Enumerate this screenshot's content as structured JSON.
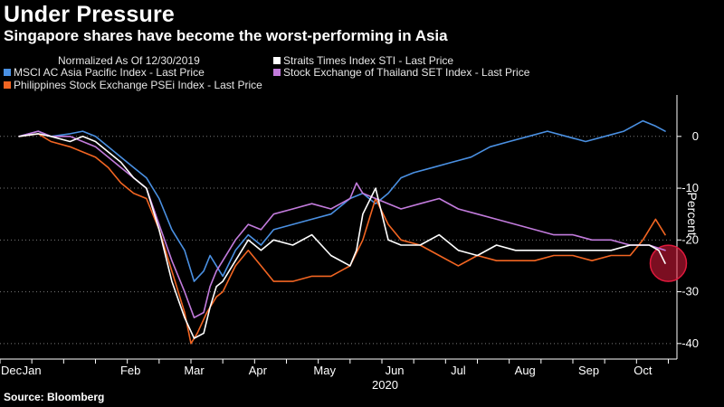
{
  "title": "Under Pressure",
  "subtitle": "Singapore shares have become the worst-performing in Asia",
  "source": "Source: Bloomberg",
  "chart_data": {
    "type": "line",
    "normalized_note": "Normalized As Of 12/30/2019",
    "ylabel": "Percent",
    "year_label": "2020",
    "ylim": [
      -43,
      8
    ],
    "yticks": [
      0,
      -10,
      -20,
      -30,
      -40
    ],
    "xlim": [
      -0.3,
      10.25
    ],
    "xticks": [
      {
        "label": "Dec",
        "x": -0.3
      },
      {
        "label": "Jan",
        "x": 0.2
      },
      {
        "label": "Feb",
        "x": 1.75
      },
      {
        "label": "Mar",
        "x": 2.75
      },
      {
        "label": "Apr",
        "x": 3.75
      },
      {
        "label": "May",
        "x": 4.8
      },
      {
        "label": "Jun",
        "x": 5.9
      },
      {
        "label": "Jul",
        "x": 6.9
      },
      {
        "label": "Aug",
        "x": 7.95
      },
      {
        "label": "Sep",
        "x": 8.95
      },
      {
        "label": "Oct",
        "x": 9.8
      }
    ],
    "highlight": {
      "x": 10.2,
      "y": -24.5,
      "color": "#e0193c"
    },
    "series": [
      {
        "name": "MSCI AC Asia Pacific Index - Last Price",
        "color": "#4a90e2",
        "x": [
          0,
          0.3,
          0.5,
          0.8,
          1.0,
          1.2,
          1.4,
          1.6,
          1.8,
          2.0,
          2.2,
          2.4,
          2.6,
          2.75,
          2.9,
          3.0,
          3.1,
          3.2,
          3.4,
          3.6,
          3.8,
          4.0,
          4.3,
          4.6,
          4.9,
          5.2,
          5.4,
          5.6,
          5.8,
          6.0,
          6.2,
          6.5,
          6.8,
          7.1,
          7.4,
          7.7,
          8.0,
          8.3,
          8.6,
          8.9,
          9.2,
          9.5,
          9.8,
          10.0,
          10.15
        ],
        "y": [
          0,
          1,
          0,
          0.5,
          1,
          0,
          -2,
          -4,
          -6,
          -8,
          -12,
          -18,
          -22,
          -28,
          -26,
          -23,
          -25,
          -27,
          -22,
          -19,
          -21,
          -18,
          -17,
          -16,
          -15,
          -12,
          -11,
          -13,
          -11,
          -8,
          -7,
          -6,
          -5,
          -4,
          -2,
          -1,
          0,
          1,
          0,
          -1,
          0,
          1,
          3,
          2,
          1
        ]
      },
      {
        "name": "Straits Times Index STI - Last Price",
        "color": "#ffffff",
        "x": [
          0,
          0.3,
          0.5,
          0.8,
          1.0,
          1.2,
          1.4,
          1.6,
          1.8,
          2.0,
          2.2,
          2.4,
          2.6,
          2.75,
          2.9,
          3.0,
          3.1,
          3.2,
          3.4,
          3.6,
          3.8,
          4.0,
          4.3,
          4.6,
          4.9,
          5.2,
          5.3,
          5.4,
          5.6,
          5.8,
          6.0,
          6.3,
          6.6,
          6.9,
          7.2,
          7.5,
          7.8,
          8.1,
          8.4,
          8.7,
          9.0,
          9.3,
          9.6,
          9.9,
          10.05,
          10.15
        ],
        "y": [
          0,
          0.5,
          0,
          -1,
          0,
          -1,
          -3,
          -5,
          -8,
          -10,
          -18,
          -28,
          -35,
          -39,
          -38,
          -33,
          -29,
          -28,
          -24,
          -20,
          -22,
          -20,
          -21,
          -19,
          -23,
          -25,
          -22,
          -15,
          -10,
          -20,
          -21,
          -21,
          -19,
          -22,
          -23,
          -21,
          -22,
          -22,
          -22,
          -22,
          -22,
          -22,
          -21,
          -21,
          -22,
          -24.5
        ]
      },
      {
        "name": "Stock Exchange of Thailand SET Index - Last Price",
        "color": "#c27bdc",
        "x": [
          0,
          0.3,
          0.5,
          0.8,
          1.0,
          1.2,
          1.4,
          1.6,
          1.8,
          2.0,
          2.2,
          2.4,
          2.6,
          2.75,
          2.9,
          3.0,
          3.1,
          3.2,
          3.4,
          3.6,
          3.8,
          4.0,
          4.3,
          4.6,
          4.9,
          5.2,
          5.3,
          5.4,
          5.6,
          5.8,
          6.0,
          6.3,
          6.6,
          6.9,
          7.2,
          7.5,
          7.8,
          8.1,
          8.4,
          8.7,
          9.0,
          9.3,
          9.6,
          9.9,
          10.15
        ],
        "y": [
          0,
          1,
          0,
          0,
          -1,
          -2,
          -4,
          -6,
          -8,
          -10,
          -17,
          -24,
          -30,
          -35,
          -34,
          -29,
          -26,
          -24,
          -20,
          -17,
          -18,
          -15,
          -14,
          -13,
          -14,
          -12,
          -9,
          -11,
          -12,
          -13,
          -14,
          -13,
          -12,
          -14,
          -15,
          -16,
          -17,
          -18,
          -19,
          -19,
          -20,
          -20,
          -21,
          -21,
          -22
        ]
      },
      {
        "name": "Philippines Stock Exchange PSEi Index - Last Price",
        "color": "#f26522",
        "x": [
          0,
          0.3,
          0.5,
          0.8,
          1.0,
          1.2,
          1.4,
          1.6,
          1.8,
          2.0,
          2.2,
          2.4,
          2.6,
          2.7,
          2.8,
          2.95,
          3.1,
          3.2,
          3.4,
          3.6,
          3.8,
          4.0,
          4.3,
          4.6,
          4.9,
          5.2,
          5.4,
          5.6,
          5.8,
          6.0,
          6.3,
          6.6,
          6.9,
          7.2,
          7.5,
          7.8,
          8.1,
          8.4,
          8.7,
          9.0,
          9.3,
          9.6,
          9.8,
          10.0,
          10.15
        ],
        "y": [
          0,
          0.5,
          -1,
          -2,
          -3,
          -4,
          -6,
          -9,
          -11,
          -12,
          -18,
          -26,
          -34,
          -40,
          -38,
          -34,
          -31,
          -30,
          -25,
          -22,
          -25,
          -28,
          -28,
          -27,
          -27,
          -25,
          -20,
          -12,
          -17,
          -20,
          -21,
          -23,
          -25,
          -23,
          -24,
          -24,
          -24,
          -23,
          -23,
          -24,
          -23,
          -23,
          -20,
          -16,
          -19
        ]
      }
    ]
  }
}
